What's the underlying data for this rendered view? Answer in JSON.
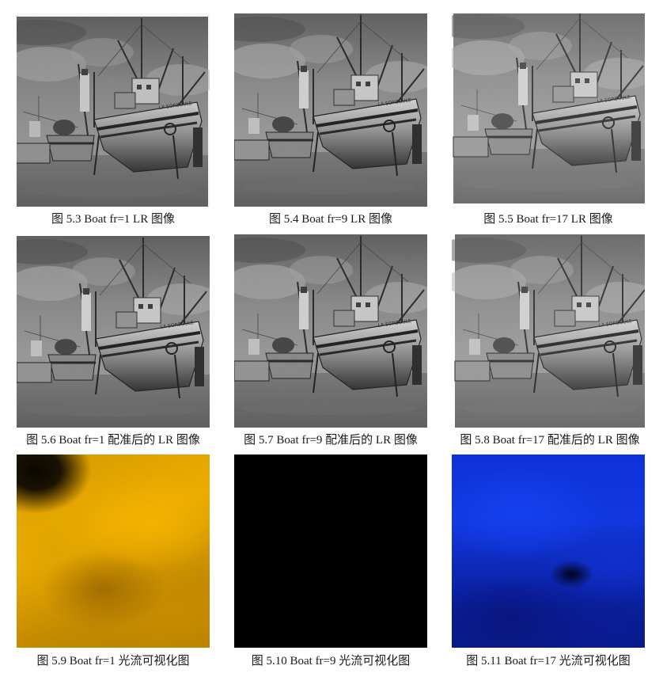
{
  "figures": [
    {
      "caption": "图 5.3  Boat fr=1 LR 图像",
      "kind": "photo",
      "boat_text": "LA SORBOULE"
    },
    {
      "caption": "图 5.4  Boat fr=9 LR 图像",
      "kind": "photo",
      "boat_text": "LA SORBOULE"
    },
    {
      "caption": "图 5.5  Boat fr=17 LR 图像",
      "kind": "photo",
      "boat_text": "LA SORBOULE"
    },
    {
      "caption": "图 5.6  Boat fr=1 配准后的 LR 图像",
      "kind": "photo",
      "boat_text": "LA SORBOULE"
    },
    {
      "caption": "图 5.7  Boat fr=9 配准后的 LR 图像",
      "kind": "photo",
      "boat_text": "LA SORBOULE"
    },
    {
      "caption": "图 5.8  Boat fr=17 配准后的 LR 图像",
      "kind": "photo",
      "boat_text": "LA SORBOULE"
    },
    {
      "caption": "图 5.9  Boat fr=1 光流可视化图",
      "kind": "flow",
      "color": "#e3a400"
    },
    {
      "caption": "图 5.10  Boat fr=9 光流可视化图",
      "kind": "flow",
      "color": "#000000"
    },
    {
      "caption": "图 5.11  Boat fr=17 光流可视化图",
      "kind": "flow",
      "color": "#1238e0"
    }
  ]
}
